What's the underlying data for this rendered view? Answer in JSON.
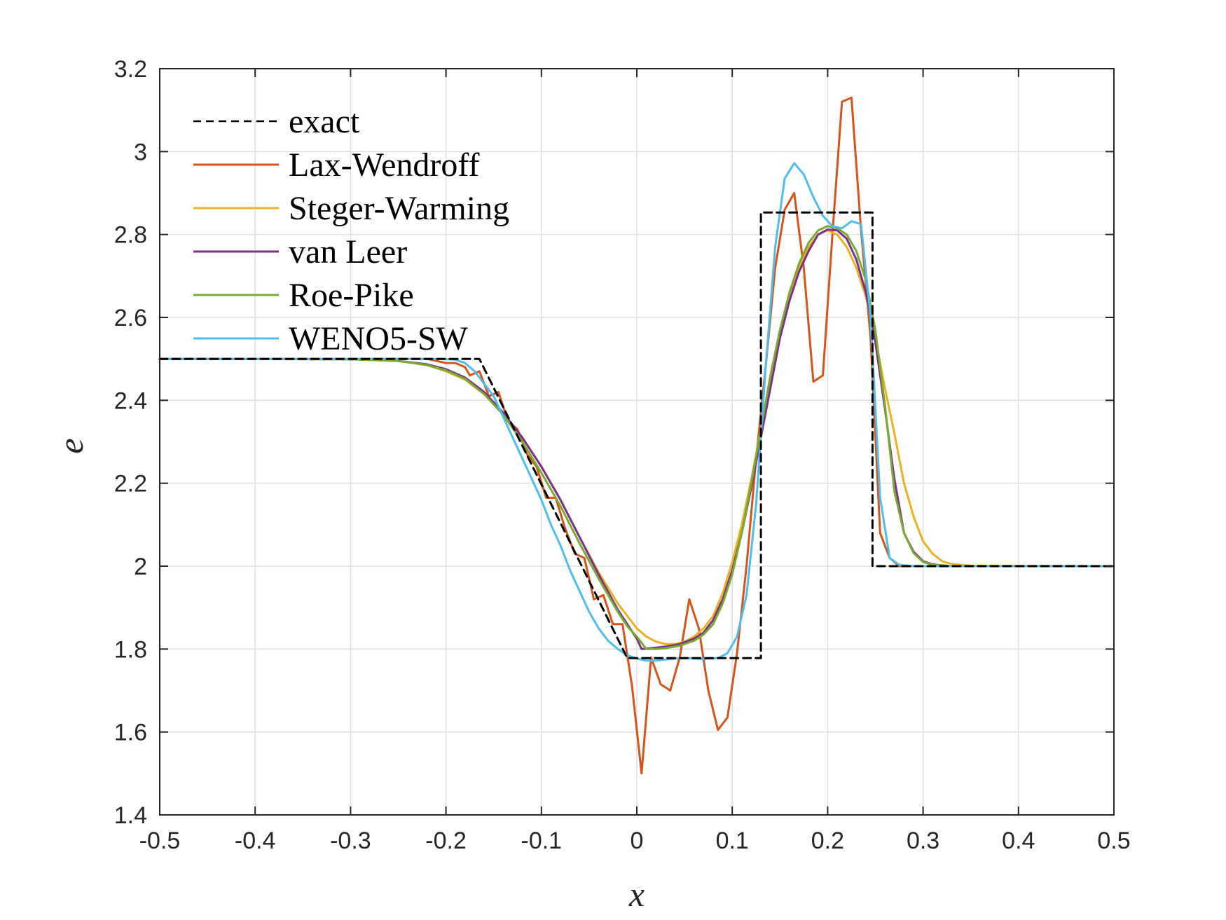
{
  "chart_data": {
    "type": "line",
    "title": "",
    "xlabel": "x",
    "ylabel": "e",
    "xlim": [
      -0.5,
      0.5
    ],
    "ylim": [
      1.4,
      3.2
    ],
    "xticks": [
      -0.5,
      -0.4,
      -0.3,
      -0.2,
      -0.1,
      0,
      0.1,
      0.2,
      0.3,
      0.4,
      0.5
    ],
    "xtick_labels": [
      "-0.5",
      "-0.4",
      "-0.3",
      "-0.2",
      "-0.1",
      "0",
      "0.1",
      "0.2",
      "0.3",
      "0.4",
      "0.5"
    ],
    "yticks": [
      1.4,
      1.6,
      1.8,
      2.0,
      2.2,
      2.4,
      2.6,
      2.8,
      3.0,
      3.2
    ],
    "ytick_labels": [
      "1.4",
      "1.6",
      "1.8",
      "2",
      "2.2",
      "2.4",
      "2.6",
      "2.8",
      "3",
      "3.2"
    ],
    "grid": true,
    "legend_position": "top-left",
    "series": [
      {
        "name": "exact",
        "color": "#000000",
        "dash": "dashed",
        "points": [
          [
            -0.5,
            2.5
          ],
          [
            -0.165,
            2.5
          ],
          [
            -0.01,
            1.778
          ],
          [
            0.13,
            1.778
          ],
          [
            0.13,
            2.853
          ],
          [
            0.247,
            2.853
          ],
          [
            0.247,
            2.0
          ],
          [
            0.5,
            2.0
          ]
        ]
      },
      {
        "name": "Lax-Wendroff",
        "color": "#d95319",
        "dash": "solid",
        "points": [
          [
            -0.5,
            2.5
          ],
          [
            -0.25,
            2.5
          ],
          [
            -0.22,
            2.5
          ],
          [
            -0.2,
            2.49
          ],
          [
            -0.19,
            2.49
          ],
          [
            -0.18,
            2.48
          ],
          [
            -0.175,
            2.46
          ],
          [
            -0.165,
            2.47
          ],
          [
            -0.155,
            2.41
          ],
          [
            -0.145,
            2.42
          ],
          [
            -0.135,
            2.35
          ],
          [
            -0.125,
            2.33
          ],
          [
            -0.115,
            2.27
          ],
          [
            -0.105,
            2.24
          ],
          [
            -0.095,
            2.165
          ],
          [
            -0.085,
            2.165
          ],
          [
            -0.075,
            2.09
          ],
          [
            -0.065,
            2.03
          ],
          [
            -0.055,
            2.02
          ],
          [
            -0.045,
            1.92
          ],
          [
            -0.035,
            1.93
          ],
          [
            -0.025,
            1.86
          ],
          [
            -0.015,
            1.86
          ],
          [
            -0.005,
            1.71
          ],
          [
            0.005,
            1.5
          ],
          [
            0.015,
            1.78
          ],
          [
            0.025,
            1.715
          ],
          [
            0.035,
            1.7
          ],
          [
            0.045,
            1.78
          ],
          [
            0.055,
            1.92
          ],
          [
            0.065,
            1.85
          ],
          [
            0.075,
            1.7
          ],
          [
            0.085,
            1.605
          ],
          [
            0.095,
            1.635
          ],
          [
            0.105,
            1.79
          ],
          [
            0.115,
            2.0
          ],
          [
            0.125,
            2.26
          ],
          [
            0.135,
            2.48
          ],
          [
            0.145,
            2.72
          ],
          [
            0.155,
            2.86
          ],
          [
            0.165,
            2.9
          ],
          [
            0.175,
            2.72
          ],
          [
            0.185,
            2.445
          ],
          [
            0.195,
            2.46
          ],
          [
            0.205,
            2.8
          ],
          [
            0.215,
            3.12
          ],
          [
            0.225,
            3.13
          ],
          [
            0.235,
            2.81
          ],
          [
            0.245,
            2.55
          ],
          [
            0.255,
            2.08
          ],
          [
            0.265,
            2.02
          ],
          [
            0.275,
            2.0
          ],
          [
            0.3,
            2.0
          ],
          [
            0.5,
            2.0
          ]
        ]
      },
      {
        "name": "Steger-Warming",
        "color": "#edb120",
        "dash": "solid",
        "points": [
          [
            -0.5,
            2.5
          ],
          [
            -0.3,
            2.499
          ],
          [
            -0.25,
            2.495
          ],
          [
            -0.22,
            2.485
          ],
          [
            -0.2,
            2.47
          ],
          [
            -0.18,
            2.45
          ],
          [
            -0.16,
            2.415
          ],
          [
            -0.14,
            2.37
          ],
          [
            -0.12,
            2.31
          ],
          [
            -0.1,
            2.24
          ],
          [
            -0.08,
            2.16
          ],
          [
            -0.06,
            2.07
          ],
          [
            -0.04,
            1.985
          ],
          [
            -0.02,
            1.91
          ],
          [
            0.0,
            1.85
          ],
          [
            0.01,
            1.83
          ],
          [
            0.02,
            1.818
          ],
          [
            0.03,
            1.812
          ],
          [
            0.04,
            1.812
          ],
          [
            0.05,
            1.818
          ],
          [
            0.06,
            1.83
          ],
          [
            0.07,
            1.85
          ],
          [
            0.08,
            1.88
          ],
          [
            0.09,
            1.935
          ],
          [
            0.1,
            2.01
          ],
          [
            0.11,
            2.1
          ],
          [
            0.12,
            2.21
          ],
          [
            0.13,
            2.33
          ],
          [
            0.14,
            2.45
          ],
          [
            0.15,
            2.56
          ],
          [
            0.16,
            2.65
          ],
          [
            0.17,
            2.72
          ],
          [
            0.18,
            2.77
          ],
          [
            0.19,
            2.8
          ],
          [
            0.2,
            2.81
          ],
          [
            0.21,
            2.8
          ],
          [
            0.22,
            2.77
          ],
          [
            0.23,
            2.72
          ],
          [
            0.24,
            2.65
          ],
          [
            0.25,
            2.55
          ],
          [
            0.26,
            2.43
          ],
          [
            0.27,
            2.32
          ],
          [
            0.28,
            2.2
          ],
          [
            0.29,
            2.12
          ],
          [
            0.3,
            2.06
          ],
          [
            0.31,
            2.03
          ],
          [
            0.32,
            2.012
          ],
          [
            0.33,
            2.005
          ],
          [
            0.35,
            2.001
          ],
          [
            0.5,
            2.0
          ]
        ]
      },
      {
        "name": "van Leer",
        "color": "#7e2f8e",
        "dash": "solid",
        "points": [
          [
            -0.5,
            2.5
          ],
          [
            -0.3,
            2.499
          ],
          [
            -0.25,
            2.495
          ],
          [
            -0.22,
            2.487
          ],
          [
            -0.2,
            2.475
          ],
          [
            -0.18,
            2.455
          ],
          [
            -0.16,
            2.42
          ],
          [
            -0.14,
            2.37
          ],
          [
            -0.12,
            2.31
          ],
          [
            -0.1,
            2.24
          ],
          [
            -0.08,
            2.16
          ],
          [
            -0.06,
            2.07
          ],
          [
            -0.04,
            1.98
          ],
          [
            -0.02,
            1.895
          ],
          [
            -0.01,
            1.86
          ],
          [
            0.0,
            1.825
          ],
          [
            0.005,
            1.8
          ],
          [
            0.015,
            1.802
          ],
          [
            0.03,
            1.806
          ],
          [
            0.045,
            1.812
          ],
          [
            0.06,
            1.825
          ],
          [
            0.07,
            1.84
          ],
          [
            0.08,
            1.87
          ],
          [
            0.09,
            1.92
          ],
          [
            0.1,
            1.99
          ],
          [
            0.11,
            2.08
          ],
          [
            0.12,
            2.19
          ],
          [
            0.13,
            2.31
          ],
          [
            0.14,
            2.43
          ],
          [
            0.15,
            2.55
          ],
          [
            0.16,
            2.64
          ],
          [
            0.17,
            2.71
          ],
          [
            0.18,
            2.76
          ],
          [
            0.19,
            2.8
          ],
          [
            0.2,
            2.812
          ],
          [
            0.21,
            2.81
          ],
          [
            0.22,
            2.79
          ],
          [
            0.23,
            2.74
          ],
          [
            0.24,
            2.66
          ],
          [
            0.25,
            2.54
          ],
          [
            0.26,
            2.38
          ],
          [
            0.27,
            2.21
          ],
          [
            0.28,
            2.08
          ],
          [
            0.29,
            2.035
          ],
          [
            0.3,
            2.012
          ],
          [
            0.31,
            2.004
          ],
          [
            0.33,
            2.0
          ],
          [
            0.5,
            2.0
          ]
        ]
      },
      {
        "name": "Roe-Pike",
        "color": "#77ac30",
        "dash": "solid",
        "points": [
          [
            -0.5,
            2.5
          ],
          [
            -0.3,
            2.499
          ],
          [
            -0.25,
            2.495
          ],
          [
            -0.22,
            2.485
          ],
          [
            -0.2,
            2.472
          ],
          [
            -0.18,
            2.452
          ],
          [
            -0.16,
            2.415
          ],
          [
            -0.14,
            2.365
          ],
          [
            -0.12,
            2.3
          ],
          [
            -0.1,
            2.225
          ],
          [
            -0.08,
            2.145
          ],
          [
            -0.06,
            2.055
          ],
          [
            -0.04,
            1.97
          ],
          [
            -0.02,
            1.89
          ],
          [
            -0.01,
            1.855
          ],
          [
            0.0,
            1.83
          ],
          [
            0.01,
            1.8
          ],
          [
            0.02,
            1.8
          ],
          [
            0.03,
            1.802
          ],
          [
            0.045,
            1.808
          ],
          [
            0.06,
            1.82
          ],
          [
            0.07,
            1.835
          ],
          [
            0.08,
            1.86
          ],
          [
            0.09,
            1.91
          ],
          [
            0.1,
            1.98
          ],
          [
            0.11,
            2.08
          ],
          [
            0.12,
            2.2
          ],
          [
            0.13,
            2.33
          ],
          [
            0.14,
            2.46
          ],
          [
            0.15,
            2.57
          ],
          [
            0.16,
            2.66
          ],
          [
            0.17,
            2.73
          ],
          [
            0.18,
            2.78
          ],
          [
            0.19,
            2.81
          ],
          [
            0.2,
            2.82
          ],
          [
            0.21,
            2.815
          ],
          [
            0.22,
            2.8
          ],
          [
            0.23,
            2.76
          ],
          [
            0.24,
            2.69
          ],
          [
            0.25,
            2.57
          ],
          [
            0.26,
            2.39
          ],
          [
            0.27,
            2.18
          ],
          [
            0.28,
            2.08
          ],
          [
            0.29,
            2.032
          ],
          [
            0.3,
            2.01
          ],
          [
            0.31,
            2.003
          ],
          [
            0.33,
            2.0
          ],
          [
            0.5,
            2.0
          ]
        ]
      },
      {
        "name": "WENO5-SW",
        "color": "#4dbeee",
        "dash": "solid",
        "points": [
          [
            -0.5,
            2.5
          ],
          [
            -0.25,
            2.5
          ],
          [
            -0.21,
            2.5
          ],
          [
            -0.19,
            2.498
          ],
          [
            -0.18,
            2.49
          ],
          [
            -0.17,
            2.47
          ],
          [
            -0.16,
            2.44
          ],
          [
            -0.15,
            2.41
          ],
          [
            -0.14,
            2.36
          ],
          [
            -0.13,
            2.31
          ],
          [
            -0.12,
            2.26
          ],
          [
            -0.11,
            2.21
          ],
          [
            -0.1,
            2.16
          ],
          [
            -0.09,
            2.1
          ],
          [
            -0.08,
            2.05
          ],
          [
            -0.07,
            1.99
          ],
          [
            -0.06,
            1.94
          ],
          [
            -0.05,
            1.89
          ],
          [
            -0.04,
            1.85
          ],
          [
            -0.03,
            1.82
          ],
          [
            -0.02,
            1.8
          ],
          [
            -0.01,
            1.785
          ],
          [
            0.0,
            1.777
          ],
          [
            0.01,
            1.772
          ],
          [
            0.02,
            1.772
          ],
          [
            0.035,
            1.776
          ],
          [
            0.05,
            1.778
          ],
          [
            0.07,
            1.776
          ],
          [
            0.085,
            1.778
          ],
          [
            0.095,
            1.79
          ],
          [
            0.105,
            1.83
          ],
          [
            0.115,
            1.93
          ],
          [
            0.125,
            2.15
          ],
          [
            0.135,
            2.48
          ],
          [
            0.145,
            2.77
          ],
          [
            0.155,
            2.935
          ],
          [
            0.165,
            2.972
          ],
          [
            0.175,
            2.945
          ],
          [
            0.185,
            2.89
          ],
          [
            0.195,
            2.845
          ],
          [
            0.205,
            2.82
          ],
          [
            0.215,
            2.815
          ],
          [
            0.225,
            2.832
          ],
          [
            0.235,
            2.825
          ],
          [
            0.245,
            2.6
          ],
          [
            0.255,
            2.165
          ],
          [
            0.265,
            2.02
          ],
          [
            0.275,
            2.003
          ],
          [
            0.29,
            2.0
          ],
          [
            0.5,
            2.0
          ]
        ]
      }
    ]
  }
}
